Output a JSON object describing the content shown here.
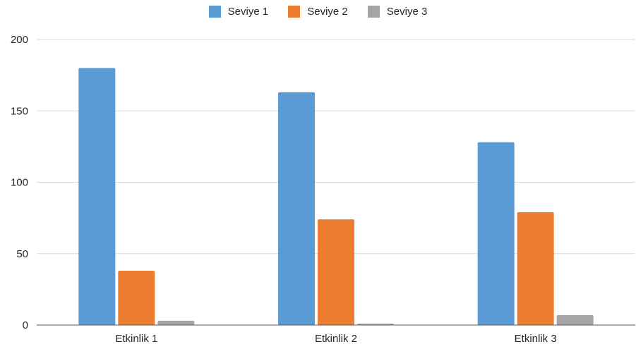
{
  "chart_data": {
    "type": "bar",
    "categories": [
      "Etkinlik 1",
      "Etkinlik 2",
      "Etkinlik 3"
    ],
    "series": [
      {
        "name": "Seviye 1",
        "color": "#5b9bd5",
        "values": [
          180,
          163,
          128
        ]
      },
      {
        "name": "Seviye 2",
        "color": "#ed7d31",
        "values": [
          38,
          74,
          79
        ]
      },
      {
        "name": "Seviye 3",
        "color": "#a5a5a5",
        "values": [
          3,
          1,
          7
        ]
      }
    ],
    "title": "",
    "xlabel": "",
    "ylabel": "",
    "ylim": [
      0,
      200
    ],
    "yticks": [
      "0",
      "50",
      "100",
      "150",
      "200"
    ],
    "grid": true,
    "legend_position": "top"
  }
}
